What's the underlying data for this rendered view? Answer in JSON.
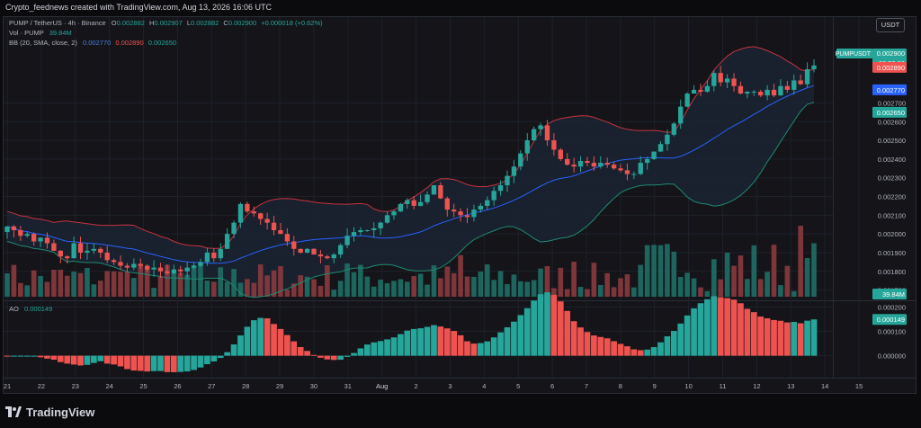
{
  "header": {
    "caption": "Crypto_feednews created with TradingView.com, Aug 13, 2026 16:06 UTC"
  },
  "legend": {
    "symbol_line": "PUMP / TetherUS · 4h · Binance",
    "open_label": "O",
    "open": "0.002882",
    "high_label": "H",
    "high": "0.002907",
    "low_label": "L",
    "low": "0.002882",
    "close_label": "C",
    "close": "0.002900",
    "change": "+0.000018 (+0.62%)",
    "vol_label": "Vol · PUMP",
    "vol": "39.84M",
    "bb_label": "BB (20, SMA, close, 2)",
    "bb_basis": "0.002770",
    "bb_upper": "0.002890",
    "bb_lower": "0.002650",
    "ao_label": "AO",
    "ao": "0.000149"
  },
  "currency_button": "USDT",
  "price_tags": {
    "symbol": "PUMPUSDT",
    "price": "0.002900",
    "countdown": "03:53:09",
    "upper": "0.002890",
    "basis": "0.002770",
    "lower": "0.002650",
    "volume": "39.84M",
    "ao": "0.000149"
  },
  "brand": {
    "name": "TradingView"
  },
  "colors": {
    "up": "#26a69a",
    "down": "#ef5350",
    "bb_basis": "#2962ff",
    "bb_upper": "#c8323f",
    "bb_lower": "#1f8a70",
    "bg": "#141419",
    "band_fill": "#1a2333",
    "grid": "#1f222b",
    "text": "#b2b5be"
  },
  "chart_data": [
    {
      "type": "candlestick",
      "title": "PUMP / TetherUS · 4h · Binance",
      "x_tick_labels": [
        "21",
        "22",
        "23",
        "24",
        "25",
        "26",
        "27",
        "28",
        "29",
        "30",
        "31",
        "Aug",
        "2",
        "3",
        "4",
        "5",
        "6",
        "7",
        "8",
        "9",
        "10",
        "11",
        "12",
        "13",
        "14",
        "15"
      ],
      "y_tick_labels": [
        "0.001700",
        "0.001800",
        "0.001900",
        "0.002000",
        "0.002100",
        "0.002200",
        "0.002300",
        "0.002400",
        "0.002500",
        "0.002600",
        "0.002700"
      ],
      "ylim": [
        0.00165,
        0.003
      ],
      "close": [
        0.00204,
        0.00202,
        0.00199,
        0.002,
        0.00196,
        0.00198,
        0.00195,
        0.00191,
        0.00188,
        0.00187,
        0.00195,
        0.0019,
        0.00191,
        0.00192,
        0.0019,
        0.00186,
        0.00185,
        0.00183,
        0.00182,
        0.00184,
        0.00183,
        0.00181,
        0.00182,
        0.0018,
        0.00179,
        0.00181,
        0.0018,
        0.00182,
        0.00183,
        0.00185,
        0.0019,
        0.00187,
        0.00192,
        0.002,
        0.00206,
        0.00216,
        0.00212,
        0.00211,
        0.00208,
        0.00206,
        0.00202,
        0.002,
        0.00196,
        0.00192,
        0.0019,
        0.00192,
        0.00189,
        0.00188,
        0.00187,
        0.00189,
        0.00194,
        0.00199,
        0.00201,
        0.00202,
        0.00202,
        0.00203,
        0.00206,
        0.0021,
        0.00212,
        0.00216,
        0.00218,
        0.00215,
        0.00217,
        0.00221,
        0.00226,
        0.00219,
        0.00213,
        0.00212,
        0.0021,
        0.00209,
        0.00213,
        0.00215,
        0.00218,
        0.00223,
        0.00226,
        0.00231,
        0.00236,
        0.00243,
        0.0025,
        0.00256,
        0.00258,
        0.0025,
        0.00245,
        0.0024,
        0.00237,
        0.00236,
        0.00239,
        0.00238,
        0.00236,
        0.00238,
        0.00237,
        0.00235,
        0.00234,
        0.00232,
        0.00232,
        0.00238,
        0.0024,
        0.00244,
        0.00248,
        0.00253,
        0.00259,
        0.00268,
        0.00275,
        0.00277,
        0.00276,
        0.00279,
        0.00286,
        0.00281,
        0.00283,
        0.00279,
        0.00275,
        0.00276,
        0.00276,
        0.00274,
        0.00277,
        0.00274,
        0.00279,
        0.00277,
        0.00282,
        0.0028,
        0.00288,
        0.0029
      ],
      "volume_unit": "M",
      "volume_last": 39.84,
      "bb": {
        "period": 20,
        "basis": 0.00277,
        "upper": 0.00289,
        "lower": 0.00265
      }
    },
    {
      "type": "bar",
      "title": "AO",
      "y_tick_labels": [
        "0.000000",
        "0.000100",
        "0.000200"
      ],
      "ylim": [
        -9e-05,
        0.00022
      ],
      "last": 0.000149
    }
  ]
}
